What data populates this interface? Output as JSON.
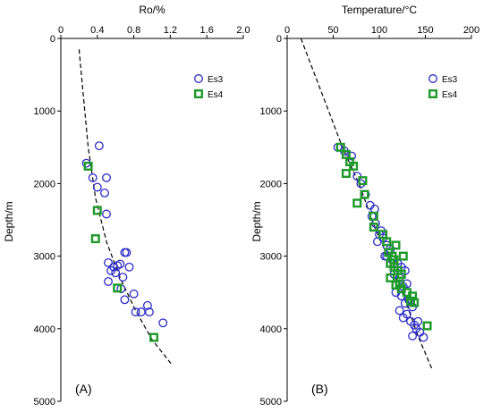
{
  "chart_data": [
    {
      "type": "scatter",
      "panel_label": "(A)",
      "title": "",
      "xlabel": "Ro/%",
      "ylabel": "Depth/m",
      "xlim": [
        0,
        2.0
      ],
      "ylim": [
        5000,
        0
      ],
      "x_ticks": [
        "0",
        "0.4",
        "0.8",
        "1.2",
        "1.6",
        "2.0"
      ],
      "y_ticks": [
        "0",
        "1000",
        "2000",
        "3000",
        "4000",
        "5000"
      ],
      "x_axis_position": "top",
      "y_inverted": true,
      "grid": false,
      "legend_position": "top-right",
      "trend": {
        "style": "dashed",
        "points": [
          [
            0.2,
            150
          ],
          [
            0.24,
            700
          ],
          [
            0.3,
            1500
          ],
          [
            0.38,
            2200
          ],
          [
            0.5,
            2800
          ],
          [
            0.65,
            3300
          ],
          [
            0.82,
            3750
          ],
          [
            1.0,
            4150
          ],
          [
            1.22,
            4500
          ]
        ]
      },
      "series": [
        {
          "name": "Es3",
          "marker": "circle",
          "color": "#2b2bc9",
          "points": [
            [
              0.42,
              1480
            ],
            [
              0.28,
              1720
            ],
            [
              0.35,
              1920
            ],
            [
              0.5,
              1920
            ],
            [
              0.4,
              2050
            ],
            [
              0.48,
              2130
            ],
            [
              0.5,
              2420
            ],
            [
              0.72,
              2950
            ],
            [
              0.7,
              2950
            ],
            [
              0.52,
              3090
            ],
            [
              0.58,
              3150
            ],
            [
              0.62,
              3130
            ],
            [
              0.65,
              3110
            ],
            [
              0.75,
              3150
            ],
            [
              0.55,
              3200
            ],
            [
              0.6,
              3230
            ],
            [
              0.68,
              3290
            ],
            [
              0.52,
              3350
            ],
            [
              0.66,
              3450
            ],
            [
              0.8,
              3520
            ],
            [
              0.7,
              3600
            ],
            [
              0.95,
              3680
            ],
            [
              0.88,
              3770
            ],
            [
              0.97,
              3770
            ],
            [
              0.82,
              3770
            ],
            [
              1.12,
              3920
            ]
          ]
        },
        {
          "name": "Es4",
          "marker": "square",
          "color": "#1e9a2a",
          "points": [
            [
              0.3,
              1760
            ],
            [
              0.4,
              2370
            ],
            [
              0.38,
              2760
            ],
            [
              0.62,
              3440
            ],
            [
              1.02,
              4120
            ]
          ]
        }
      ]
    },
    {
      "type": "scatter",
      "panel_label": "(B)",
      "title": "",
      "xlabel": "Temperature/°C",
      "ylabel": "Depth/m",
      "xlim": [
        0,
        200
      ],
      "ylim": [
        5000,
        0
      ],
      "x_ticks": [
        "0",
        "50",
        "100",
        "150",
        "200"
      ],
      "y_ticks": [
        "0",
        "1000",
        "2000",
        "3000",
        "4000",
        "5000"
      ],
      "x_axis_position": "top",
      "y_inverted": true,
      "grid": false,
      "legend_position": "top-right",
      "trend": {
        "style": "dashed",
        "points": [
          [
            15,
            0
          ],
          [
            30,
            500
          ],
          [
            45,
            1000
          ],
          [
            60,
            1500
          ],
          [
            78,
            2000
          ],
          [
            95,
            2600
          ],
          [
            112,
            3100
          ],
          [
            128,
            3600
          ],
          [
            142,
            4100
          ],
          [
            157,
            4550
          ]
        ]
      },
      "series": [
        {
          "name": "Es3",
          "marker": "circle",
          "color": "#2b2bc9",
          "points": [
            [
              55,
              1500
            ],
            [
              62,
              1550
            ],
            [
              70,
              1620
            ],
            [
              76,
              1900
            ],
            [
              80,
              2000
            ],
            [
              85,
              2150
            ],
            [
              90,
              2300
            ],
            [
              95,
              2350
            ],
            [
              92,
              2450
            ],
            [
              96,
              2550
            ],
            [
              100,
              2700
            ],
            [
              98,
              2800
            ],
            [
              104,
              2750
            ],
            [
              108,
              2850
            ],
            [
              110,
              2950
            ],
            [
              106,
              3000
            ],
            [
              114,
              3050
            ],
            [
              120,
              3100
            ],
            [
              124,
              3150
            ],
            [
              128,
              3200
            ],
            [
              116,
              3250
            ],
            [
              122,
              3300
            ],
            [
              130,
              3380
            ],
            [
              126,
              3420
            ],
            [
              118,
              3500
            ],
            [
              124,
              3550
            ],
            [
              132,
              3600
            ],
            [
              128,
              3650
            ],
            [
              136,
              3700
            ],
            [
              122,
              3750
            ],
            [
              130,
              3800
            ],
            [
              126,
              3850
            ],
            [
              134,
              3900
            ],
            [
              138,
              3950
            ],
            [
              142,
              3900
            ],
            [
              140,
              4000
            ],
            [
              144,
              4050
            ],
            [
              136,
              4100
            ],
            [
              148,
              4120
            ],
            [
              108,
              3000
            ],
            [
              112,
              2900
            ],
            [
              102,
              2650
            ],
            [
              94,
              2600
            ]
          ]
        },
        {
          "name": "Es4",
          "marker": "square",
          "color": "#1e9a2a",
          "points": [
            [
              58,
              1500
            ],
            [
              64,
              1600
            ],
            [
              68,
              1700
            ],
            [
              72,
              1760
            ],
            [
              64,
              1860
            ],
            [
              82,
              1960
            ],
            [
              84,
              2150
            ],
            [
              76,
              2270
            ],
            [
              94,
              2450
            ],
            [
              94,
              2600
            ],
            [
              104,
              2700
            ],
            [
              108,
              2800
            ],
            [
              118,
              2850
            ],
            [
              114,
              3000
            ],
            [
              112,
              3100
            ],
            [
              116,
              3150
            ],
            [
              120,
              3200
            ],
            [
              124,
              3250
            ],
            [
              112,
              3300
            ],
            [
              118,
              3400
            ],
            [
              124,
              3450
            ],
            [
              130,
              3500
            ],
            [
              136,
              3550
            ],
            [
              134,
              3620
            ],
            [
              138,
              3640
            ],
            [
              152,
              3960
            ],
            [
              126,
              3000
            ],
            [
              122,
              3380
            ],
            [
              116,
              3050
            ],
            [
              110,
              2950
            ]
          ]
        }
      ]
    }
  ]
}
